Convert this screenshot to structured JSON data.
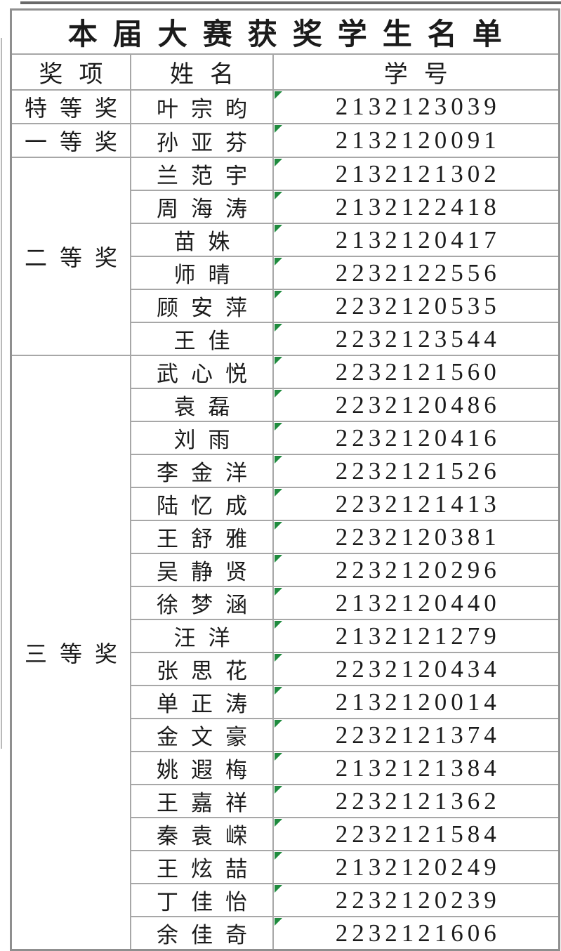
{
  "title": "本届大赛获奖学生名单",
  "columns": {
    "award": "奖项",
    "name": "姓名",
    "id": "学号"
  },
  "colors": {
    "grid_line": "#a7a7a7",
    "outer_border": "#8f8f8f",
    "text": "#1b1b1b",
    "flag_green": "#1f8b3e"
  },
  "icons": {
    "id_cell_corner": "number-stored-as-text-indicator"
  },
  "groups": [
    {
      "award": "特等奖",
      "students": [
        {
          "name": "叶宗昀",
          "id": "2132123039"
        }
      ]
    },
    {
      "award": "一等奖",
      "students": [
        {
          "name": "孙亚芬",
          "id": "2132120091"
        }
      ]
    },
    {
      "award": "二等奖",
      "students": [
        {
          "name": "兰范宇",
          "id": "2132121302"
        },
        {
          "name": "周海涛",
          "id": "2132122418"
        },
        {
          "name": "苗姝",
          "id": "2132120417"
        },
        {
          "name": "师晴",
          "id": "2232122556"
        },
        {
          "name": "顾安萍",
          "id": "2232120535"
        },
        {
          "name": "王佳",
          "id": "2232123544"
        }
      ]
    },
    {
      "award": "三等奖",
      "students": [
        {
          "name": "武心悦",
          "id": "2232121560"
        },
        {
          "name": "袁磊",
          "id": "2232120486"
        },
        {
          "name": "刘雨",
          "id": "2232120416"
        },
        {
          "name": "李金洋",
          "id": "2232121526"
        },
        {
          "name": "陆忆成",
          "id": "2232121413"
        },
        {
          "name": "王舒雅",
          "id": "2232120381"
        },
        {
          "name": "吴静贤",
          "id": "2232120296"
        },
        {
          "name": "徐梦涵",
          "id": "2132120440"
        },
        {
          "name": "汪洋",
          "id": "2132121279"
        },
        {
          "name": "张思花",
          "id": "2232120434"
        },
        {
          "name": "单正涛",
          "id": "2132120014"
        },
        {
          "name": "金文豪",
          "id": "2232121374"
        },
        {
          "name": "姚遐梅",
          "id": "2132121384"
        },
        {
          "name": "王嘉祥",
          "id": "2232121362"
        },
        {
          "name": "秦袁嵘",
          "id": "2232121584"
        },
        {
          "name": "王炫喆",
          "id": "2132120249"
        },
        {
          "name": "丁佳怡",
          "id": "2232120239"
        },
        {
          "name": "余佳奇",
          "id": "2232121606"
        }
      ]
    }
  ]
}
